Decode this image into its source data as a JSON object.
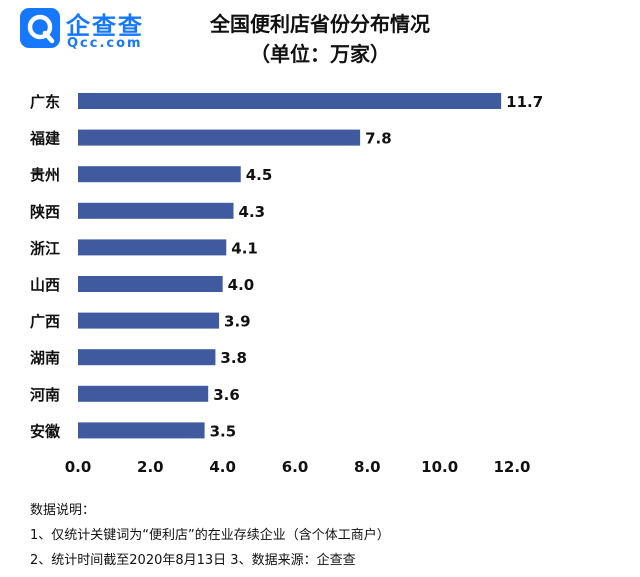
{
  "brand": {
    "name": "企查查",
    "domain": "Qcc.com",
    "icon": "magnifier-q-icon",
    "color": "#1677ff"
  },
  "chart_data": {
    "type": "bar",
    "orientation": "horizontal",
    "title": "全国便利店省份分布情况",
    "subtitle": "（单位：万家）",
    "categories": [
      "广东",
      "福建",
      "贵州",
      "陕西",
      "浙江",
      "山西",
      "广西",
      "湖南",
      "河南",
      "安徽"
    ],
    "values": [
      11.7,
      7.8,
      4.5,
      4.3,
      4.1,
      4.0,
      3.9,
      3.8,
      3.6,
      3.5
    ],
    "value_labels": [
      "11.7",
      "7.8",
      "4.5",
      "4.3",
      "4.1",
      "4.0",
      "3.9",
      "3.8",
      "3.6",
      "3.5"
    ],
    "xlim": [
      0,
      12
    ],
    "xticks": [
      "0.0",
      "2.0",
      "4.0",
      "6.0",
      "8.0",
      "10.0",
      "12.0"
    ],
    "bar_color": "#3f5a9e",
    "grid": false,
    "legend": "none"
  },
  "notes": {
    "heading": "数据说明：",
    "line1": "1、仅统计关键词为“便利店”的在业存续企业（含个体工商户）",
    "line2": "2、统计时间截至2020年8月13日 3、数据来源：企查查"
  }
}
